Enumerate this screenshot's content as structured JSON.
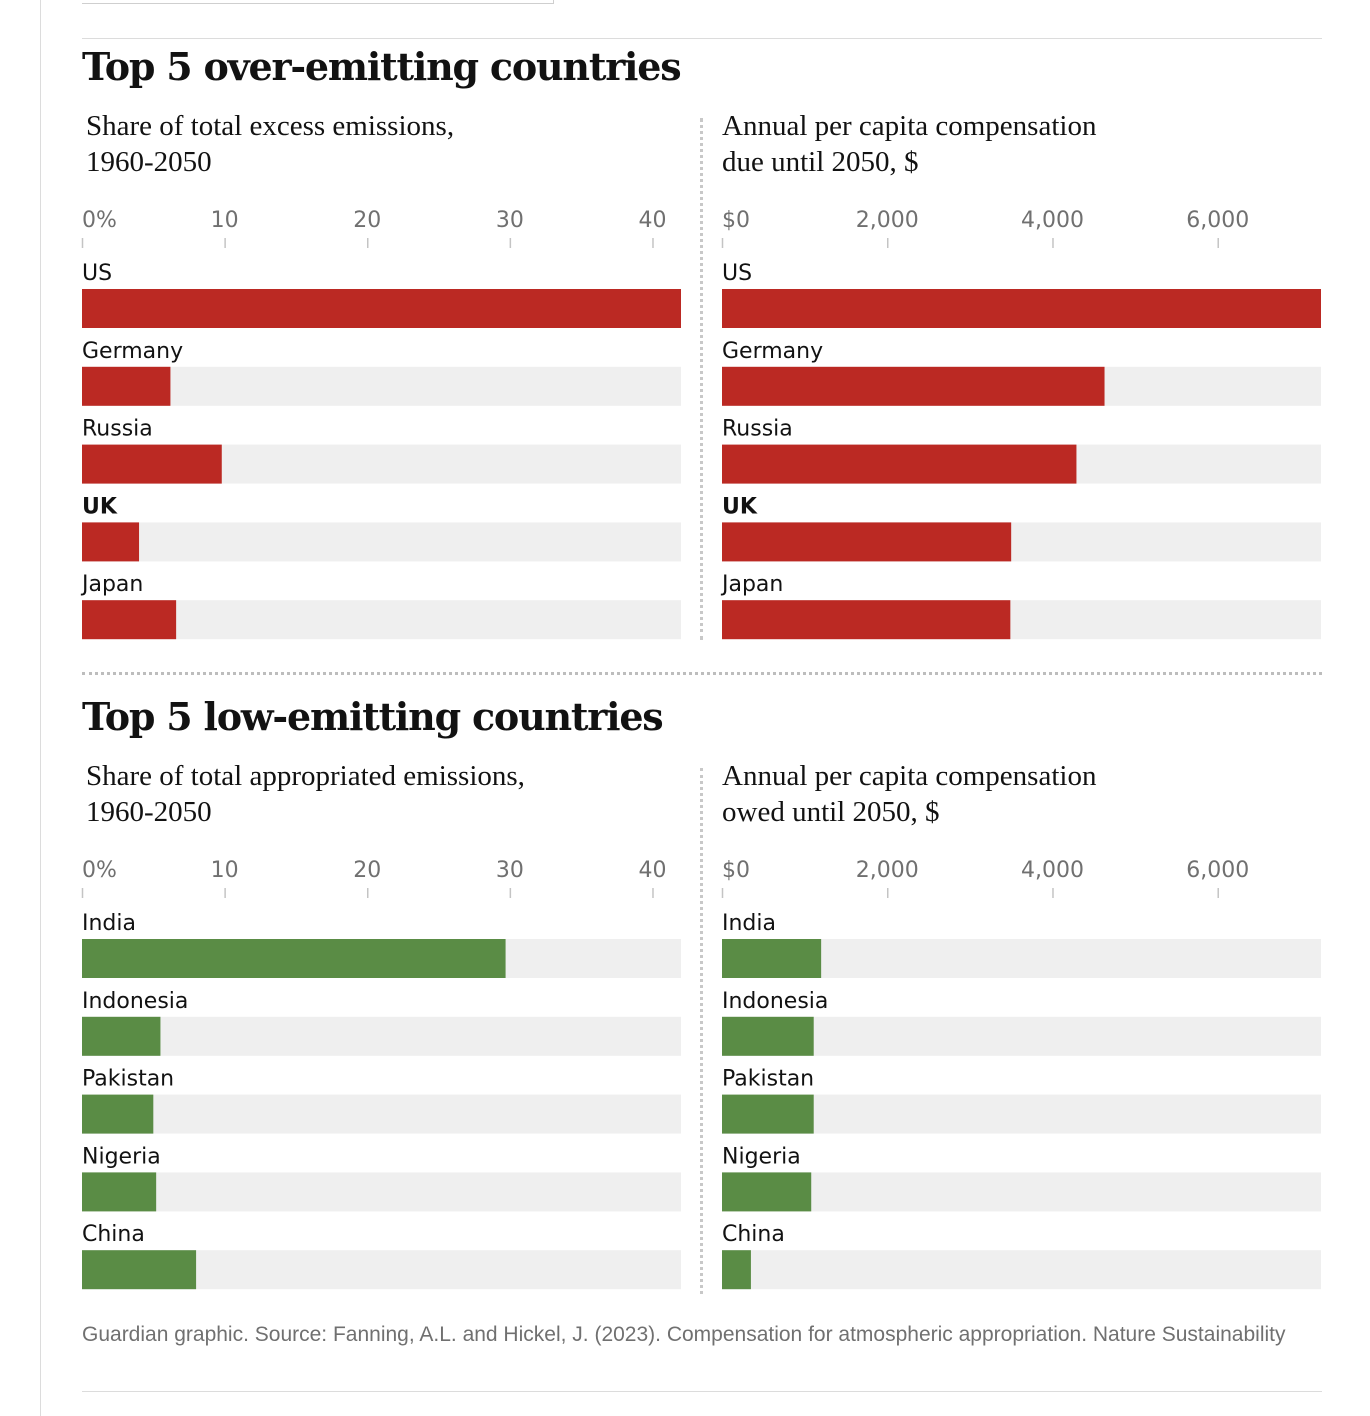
{
  "sections": {
    "over": {
      "title": "Top 5 over-emitting countries"
    },
    "low": {
      "title": "Top 5 low-emitting countries"
    }
  },
  "panels": {
    "over_share": {
      "title_lines": [
        "Share of total excess emissions,",
        "1960-2050"
      ],
      "chart_data": {
        "type": "bar",
        "orientation": "horizontal",
        "title": "Share of total excess emissions, 1960-2050",
        "categories": [
          "US",
          "Germany",
          "Russia",
          "UK",
          "Japan"
        ],
        "bold_categories": [
          "UK"
        ],
        "values": [
          42.0,
          6.2,
          9.8,
          4.0,
          6.6
        ],
        "xlim": [
          0,
          42
        ],
        "ticks": [
          0,
          10,
          20,
          30,
          40
        ],
        "tick_labels": [
          "0%",
          "10",
          "20",
          "30",
          "40"
        ],
        "grid": false,
        "bar_color": "#bb2923",
        "track_color": "#efefef"
      }
    },
    "over_comp": {
      "title_lines": [
        "Annual per capita compensation",
        "due until 2050, $"
      ],
      "chart_data": {
        "type": "bar",
        "orientation": "horizontal",
        "title": "Annual per capita compensation due until 2050, $",
        "categories": [
          "US",
          "Germany",
          "Russia",
          "UK",
          "Japan"
        ],
        "bold_categories": [
          "UK"
        ],
        "values": [
          7250,
          4630,
          4290,
          3500,
          3490
        ],
        "xlim": [
          0,
          7250
        ],
        "ticks": [
          0,
          2000,
          4000,
          6000
        ],
        "tick_labels": [
          "$0",
          "2,000",
          "4,000",
          "6,000"
        ],
        "grid": false,
        "bar_color": "#bb2923",
        "track_color": "#efefef"
      }
    },
    "low_share": {
      "title_lines": [
        "Share of total appropriated emissions,",
        "1960-2050"
      ],
      "chart_data": {
        "type": "bar",
        "orientation": "horizontal",
        "title": "Share of total appropriated emissions, 1960-2050",
        "categories": [
          "India",
          "Indonesia",
          "Pakistan",
          "Nigeria",
          "China"
        ],
        "bold_categories": [],
        "values": [
          29.7,
          5.5,
          5.0,
          5.2,
          8.0
        ],
        "xlim": [
          0,
          42
        ],
        "ticks": [
          0,
          10,
          20,
          30,
          40
        ],
        "tick_labels": [
          "0%",
          "10",
          "20",
          "30",
          "40"
        ],
        "grid": false,
        "bar_color": "#5a8c45",
        "track_color": "#efefef"
      }
    },
    "low_comp": {
      "title_lines": [
        "Annual per capita compensation",
        "owed until 2050, $"
      ],
      "chart_data": {
        "type": "bar",
        "orientation": "horizontal",
        "title": "Annual per capita compensation owed until 2050, $",
        "categories": [
          "India",
          "Indonesia",
          "Pakistan",
          "Nigeria",
          "China"
        ],
        "bold_categories": [],
        "values": [
          1200,
          1110,
          1110,
          1080,
          350
        ],
        "xlim": [
          0,
          7250
        ],
        "ticks": [
          0,
          2000,
          4000,
          6000
        ],
        "tick_labels": [
          "$0",
          "2,000",
          "4,000",
          "6,000"
        ],
        "grid": false,
        "bar_color": "#5a8c45",
        "track_color": "#efefef"
      }
    }
  },
  "source": "Guardian graphic. Source: Fanning, A.L. and Hickel, J. (2023). Compensation for atmospheric appropriation. Nature Sustainability"
}
